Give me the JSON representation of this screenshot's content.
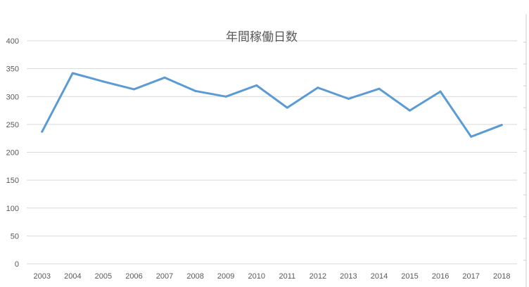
{
  "chart_data": {
    "type": "line",
    "title": "年間稼働日数",
    "xlabel": "",
    "ylabel": "",
    "categories": [
      "2003",
      "2004",
      "2005",
      "2006",
      "2007",
      "2008",
      "2009",
      "2010",
      "2011",
      "2012",
      "2013",
      "2014",
      "2015",
      "2016",
      "2017",
      "2018"
    ],
    "series": [
      {
        "values": [
          237,
          342,
          327,
          313,
          334,
          310,
          300,
          320,
          280,
          316,
          296,
          314,
          275,
          309,
          228,
          249
        ]
      }
    ],
    "ylim": [
      0,
      400
    ],
    "yticks": [
      "0",
      "50",
      "100",
      "150",
      "200",
      "250",
      "300",
      "350",
      "400"
    ],
    "grid": true,
    "legend": "none",
    "colors": {
      "series": "#5b9bd5",
      "grid": "#d9d9d9",
      "text": "#595959"
    }
  }
}
